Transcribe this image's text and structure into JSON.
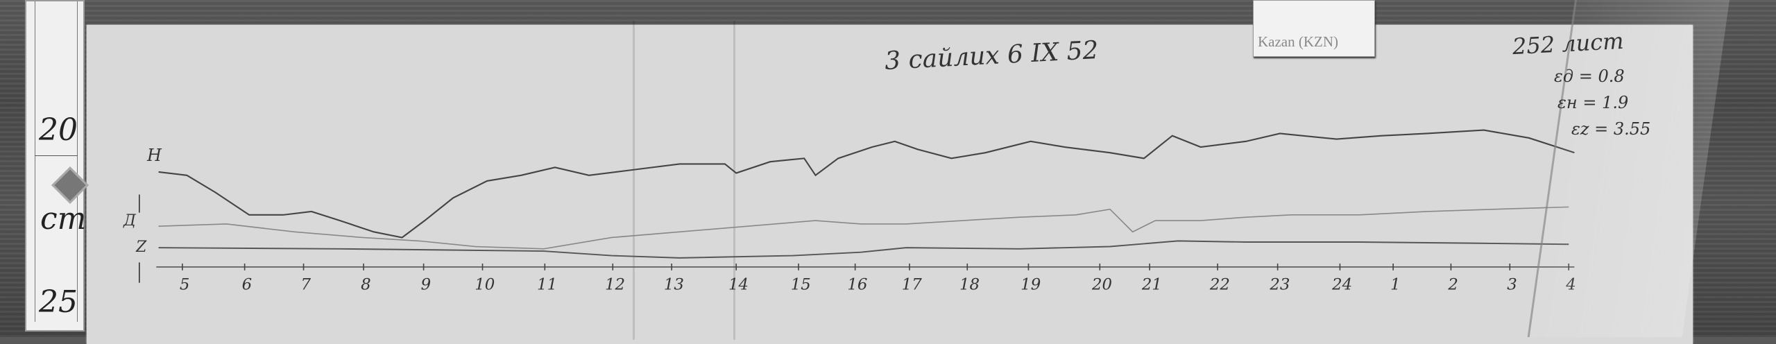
{
  "ruler": {
    "mark_top": "20",
    "unit": "cm",
    "mark_bottom": "25"
  },
  "station_label": "Kazan (KZN)",
  "title": "3 сайлих 6 IX 52",
  "sheet_number": "252 лист",
  "scale_values": [
    "εд = 0.8",
    "εн = 1.9",
    "εz = 3.55"
  ],
  "trace_labels": {
    "h": "H",
    "d": "Д",
    "z": "Z"
  },
  "hour_labels": [
    "5",
    "6",
    "7",
    "8",
    "9",
    "10",
    "11",
    "12",
    "13",
    "14",
    "15",
    "16",
    "17",
    "18",
    "19",
    "20",
    "21",
    "22",
    "23",
    "24",
    "1",
    "2",
    "3",
    "4"
  ]
}
